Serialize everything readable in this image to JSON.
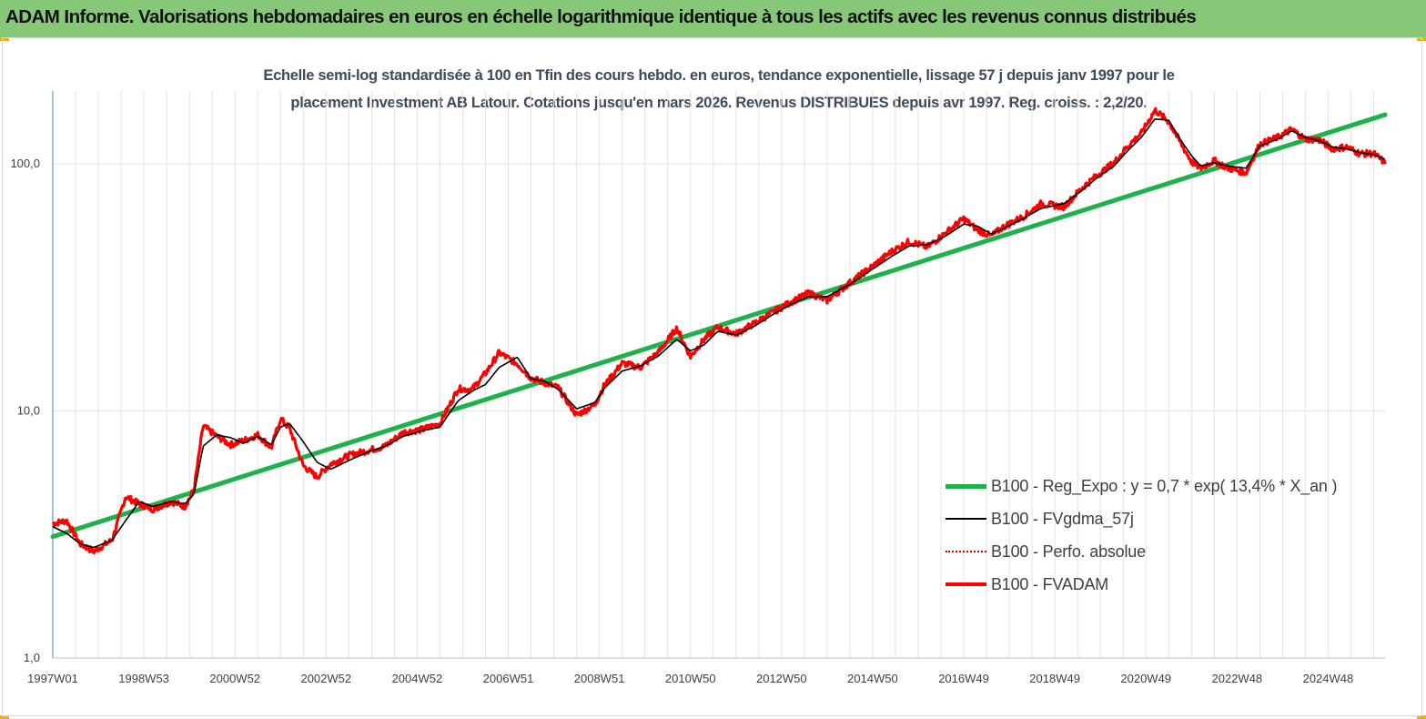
{
  "header": {
    "title": "ADAM Informe. Valorisations hebdomadaires en euros en échelle logarithmique identique à tous les actifs avec les revenus connus distribués",
    "background_color": "#86c878",
    "corner_color": "#f2b000"
  },
  "chart_data": {
    "type": "line",
    "title_line1": "Echelle semi-log standardisée à 100 en Tfin des cours hebdo. en euros, tendance exponentielle, lissage 57 j depuis janv 1997 pour le",
    "title_line2": "placement Investment AB Latour. Cotations jusqu'en mars 2026. Revenus DISTRIBUES depuis avr 1997. Reg. croiss. : 2,2/20.",
    "y_scale": "log",
    "ylim": [
      1,
      180
    ],
    "y_ticks": [
      "1,0",
      "10,0",
      "100,0"
    ],
    "x_range": [
      1997.0,
      2026.25
    ],
    "x_tick_labels": [
      "1997W01",
      "1998W53",
      "2000W52",
      "2002W52",
      "2004W52",
      "2006W51",
      "2008W51",
      "2010W50",
      "2012W50",
      "2014W50",
      "2016W49",
      "2018W49",
      "2020W49",
      "2022W48",
      "2024W48"
    ],
    "grid": "vertical",
    "legend_position": "bottom-right",
    "series": [
      {
        "name": "B100 - Reg_Expo : y = 0,7 * exp( 13,4% *  X_an )",
        "color": "#1fb14c",
        "style": "trend",
        "x": [
          1997.0,
          2026.25
        ],
        "y": [
          3.1,
          158
        ]
      },
      {
        "name": "B100 - FVgdma_57j",
        "color": "#000000",
        "style": "smooth",
        "x": [
          1997.0,
          1997.3,
          1997.6,
          1997.9,
          1998.3,
          1998.6,
          1998.9,
          1999.2,
          1999.6,
          1999.9,
          2000.1,
          2000.3,
          2000.6,
          2000.9,
          2001.2,
          2001.5,
          2001.8,
          2002.0,
          2002.2,
          2002.5,
          2002.8,
          2003.1,
          2003.5,
          2003.9,
          2004.3,
          2004.7,
          2005.1,
          2005.5,
          2005.9,
          2006.2,
          2006.5,
          2006.8,
          2007.2,
          2007.5,
          2007.8,
          2008.1,
          2008.5,
          2008.9,
          2009.1,
          2009.5,
          2009.9,
          2010.3,
          2010.7,
          2011.0,
          2011.3,
          2011.6,
          2012.0,
          2012.4,
          2012.8,
          2013.2,
          2013.6,
          2014.0,
          2014.5,
          2015.0,
          2015.4,
          2015.8,
          2016.2,
          2016.6,
          2017.0,
          2017.3,
          2017.6,
          2017.9,
          2018.3,
          2018.7,
          2019.2,
          2019.6,
          2019.9,
          2020.3,
          2020.6,
          2020.9,
          2021.2,
          2021.5,
          2021.8,
          2022.0,
          2022.2,
          2022.5,
          2022.8,
          2023.2,
          2023.5,
          2023.9,
          2024.2,
          2024.5,
          2024.8,
          2025.1,
          2025.4,
          2025.7,
          2026.0,
          2026.25
        ],
        "y": [
          3.4,
          3.2,
          2.9,
          2.8,
          3.0,
          3.6,
          4.3,
          4.1,
          4.3,
          4.2,
          4.6,
          7.2,
          8.0,
          7.8,
          7.4,
          7.9,
          7.3,
          8.6,
          8.9,
          7.5,
          6.2,
          5.8,
          6.3,
          6.8,
          7.2,
          7.9,
          8.3,
          8.6,
          11.0,
          12.0,
          12.8,
          15.0,
          16.5,
          13.5,
          13.2,
          12.2,
          10.2,
          10.8,
          12.3,
          14.5,
          15.2,
          16.7,
          19.5,
          17.5,
          18.5,
          21.0,
          20.3,
          22.0,
          24.5,
          27.0,
          29.0,
          29.0,
          32.5,
          37.5,
          42.0,
          46.5,
          47.0,
          51.0,
          57.0,
          56.0,
          52.0,
          55.0,
          60.0,
          66.0,
          69.0,
          78.0,
          87.0,
          98.0,
          113.0,
          128.0,
          152.0,
          150.0,
          122.0,
          108.0,
          98.0,
          101.0,
          98.0,
          96.0,
          118.0,
          126.0,
          136.0,
          128.0,
          124.0,
          117.0,
          115.0,
          111.0,
          109.0,
          104.0
        ]
      },
      {
        "name": "B100 - Perfo. absolue",
        "color": "#e00000",
        "style": "dotted",
        "x": [],
        "y": []
      },
      {
        "name": "B100 - FVADAM",
        "color": "#ff0000",
        "style": "noisy",
        "x": [
          1997.0,
          1997.3,
          1997.6,
          1997.9,
          1998.3,
          1998.6,
          1998.9,
          1999.2,
          1999.6,
          1999.9,
          2000.1,
          2000.3,
          2000.6,
          2000.9,
          2001.2,
          2001.5,
          2001.8,
          2002.0,
          2002.2,
          2002.5,
          2002.8,
          2003.1,
          2003.5,
          2003.9,
          2004.3,
          2004.7,
          2005.1,
          2005.5,
          2005.9,
          2006.2,
          2006.5,
          2006.8,
          2007.2,
          2007.5,
          2007.8,
          2008.1,
          2008.5,
          2008.9,
          2009.1,
          2009.5,
          2009.9,
          2010.3,
          2010.7,
          2011.0,
          2011.3,
          2011.6,
          2012.0,
          2012.4,
          2012.8,
          2013.2,
          2013.6,
          2014.0,
          2014.5,
          2015.0,
          2015.4,
          2015.8,
          2016.2,
          2016.6,
          2017.0,
          2017.3,
          2017.6,
          2017.9,
          2018.3,
          2018.7,
          2019.2,
          2019.6,
          2019.9,
          2020.3,
          2020.6,
          2020.9,
          2021.2,
          2021.5,
          2021.8,
          2022.0,
          2022.2,
          2022.5,
          2022.8,
          2023.2,
          2023.5,
          2023.9,
          2024.2,
          2024.5,
          2024.8,
          2025.1,
          2025.4,
          2025.7,
          2026.0,
          2026.25
        ],
        "y": [
          3.5,
          3.6,
          2.9,
          2.7,
          3.0,
          4.5,
          4.2,
          4.0,
          4.3,
          4.1,
          4.8,
          8.7,
          7.9,
          7.3,
          7.6,
          8.0,
          7.1,
          9.3,
          8.5,
          6.0,
          5.4,
          6.1,
          6.6,
          6.9,
          7.2,
          8.2,
          8.4,
          8.9,
          12.3,
          12.2,
          14.2,
          17.2,
          15.5,
          13.6,
          13.0,
          12.4,
          9.6,
          10.6,
          12.6,
          15.6,
          15.0,
          17.3,
          21.6,
          16.6,
          19.5,
          21.8,
          20.5,
          22.6,
          25.0,
          27.5,
          30.0,
          28.0,
          33.0,
          38.5,
          44.0,
          48.5,
          46.0,
          52.5,
          60.0,
          54.0,
          51.0,
          56.0,
          61.0,
          69.0,
          67.0,
          80.0,
          89.0,
          101.0,
          118.0,
          133.0,
          165.0,
          148.0,
          118.0,
          102.0,
          96.0,
          103.0,
          96.0,
          92.0,
          120.0,
          128.0,
          138.0,
          126.0,
          125.0,
          115.0,
          117.0,
          110.0,
          110.0,
          101.0
        ]
      }
    ]
  }
}
